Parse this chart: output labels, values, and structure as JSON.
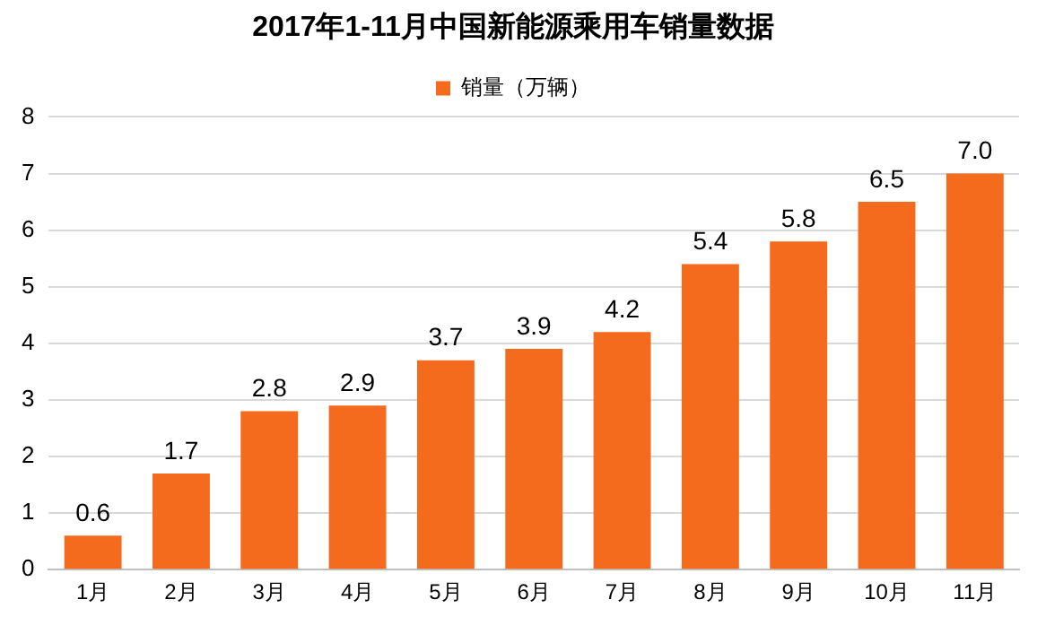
{
  "chart_data": {
    "type": "bar",
    "title": "2017年1-11月中国新能源乘用车销量数据",
    "categories": [
      "1月",
      "2月",
      "3月",
      "4月",
      "5月",
      "6月",
      "7月",
      "8月",
      "9月",
      "10月",
      "11月"
    ],
    "series": [
      {
        "name": "销量（万辆）",
        "color": "#f46b1e",
        "values": [
          0.6,
          1.7,
          2.8,
          2.9,
          3.7,
          3.9,
          4.2,
          5.4,
          5.8,
          6.5,
          7.0
        ]
      }
    ],
    "value_labels": [
      "0.6",
      "1.7",
      "2.8",
      "2.9",
      "3.7",
      "3.9",
      "4.2",
      "5.4",
      "5.8",
      "6.5",
      "7.0"
    ],
    "ylim": [
      0,
      8
    ],
    "yticks": [
      0,
      1,
      2,
      3,
      4,
      5,
      6,
      7,
      8
    ],
    "grid": "y",
    "legend": "top"
  }
}
